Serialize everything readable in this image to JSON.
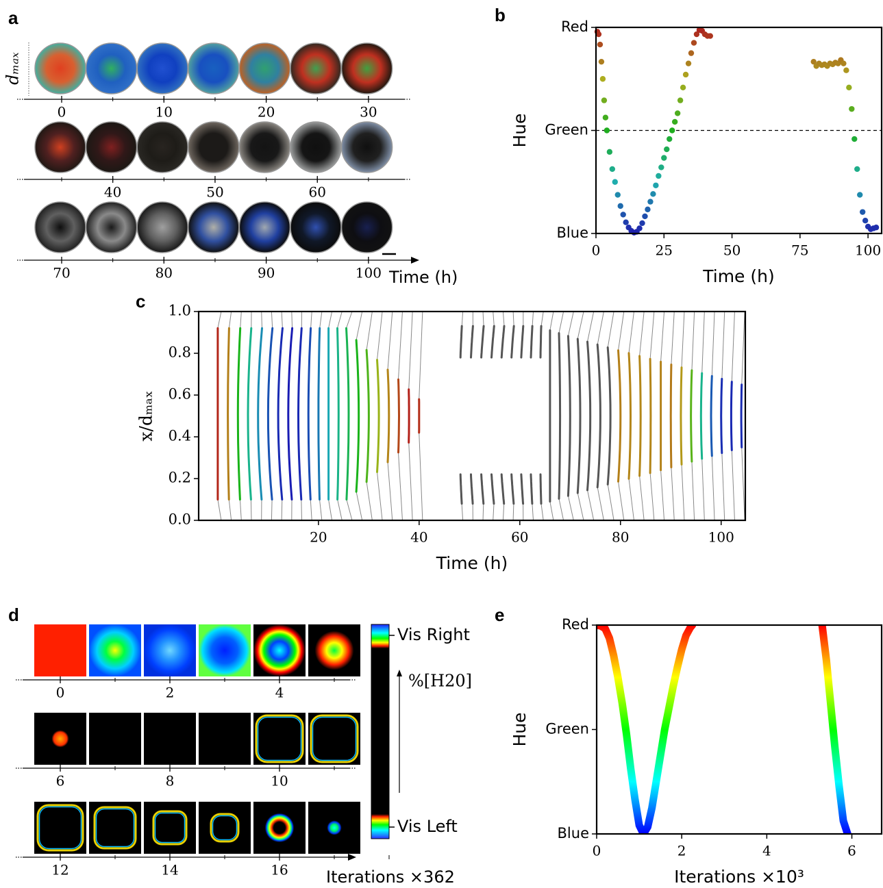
{
  "chart_data": [
    {
      "type": "photo-strip",
      "label": "a",
      "ylabel": "dₘₐₓ",
      "xlabel": "Time (h)",
      "xtick_rows": [
        [
          0,
          10,
          20,
          30
        ],
        [
          40,
          50,
          60
        ],
        [
          70,
          80,
          90,
          100
        ]
      ]
    },
    {
      "type": "scatter",
      "label": "b",
      "ylabel": "Hue",
      "xlabel": "Time (h)",
      "x": [
        0.5,
        1,
        1.5,
        2,
        2.5,
        3,
        3.5,
        4,
        5,
        6,
        7,
        8,
        9,
        10,
        11,
        12,
        13,
        14,
        15,
        16,
        17,
        18,
        19,
        20,
        21,
        22,
        23,
        24,
        25,
        26,
        27,
        28,
        29,
        30,
        31,
        32,
        33,
        34,
        35,
        36,
        37,
        38,
        39,
        40,
        41,
        42,
        80,
        81,
        82,
        83,
        84,
        85,
        86,
        87,
        88,
        89,
        90,
        91,
        92,
        93,
        94,
        95,
        96,
        97,
        98,
        99,
        100,
        101,
        102,
        103
      ],
      "values": [
        5,
        8,
        20,
        40,
        60,
        85,
        105,
        120,
        145,
        165,
        180,
        195,
        208,
        218,
        227,
        233,
        237,
        239,
        238,
        234,
        228,
        220,
        212,
        203,
        194,
        184,
        173,
        163,
        152,
        142,
        130,
        120,
        110,
        100,
        85,
        70,
        55,
        42,
        30,
        18,
        8,
        3,
        4,
        8,
        10,
        10,
        40,
        45,
        42,
        44,
        43,
        45,
        42,
        43,
        41,
        42,
        38,
        42,
        50,
        70,
        95,
        130,
        165,
        195,
        215,
        225,
        232,
        235,
        234,
        233
      ],
      "xlim": [
        0,
        105
      ],
      "ylim": [
        240,
        0
      ],
      "xticks": [
        0,
        25,
        50,
        75,
        100
      ],
      "yticks": [
        {
          "value": 0,
          "label": "Red"
        },
        {
          "value": 120,
          "label": "Green"
        },
        {
          "value": 240,
          "label": "Blue"
        }
      ],
      "hline": 120
    },
    {
      "type": "profiles",
      "label": "c",
      "ylabel": "x/dₘₐₓ",
      "xlabel": "Time (h)",
      "x": [
        0,
        2,
        4,
        6,
        8,
        10,
        12,
        14,
        16,
        18,
        20,
        22,
        24,
        26,
        28,
        30,
        32,
        34,
        36,
        38,
        40,
        48,
        50,
        52,
        54,
        56,
        58,
        60,
        62,
        64,
        66,
        68,
        70,
        72,
        74,
        76,
        78,
        80,
        82,
        84,
        86,
        88,
        90,
        92,
        94,
        96,
        98,
        100,
        102,
        104
      ],
      "values": [
        5,
        40,
        120,
        165,
        195,
        218,
        233,
        239,
        234,
        220,
        203,
        184,
        163,
        142,
        120,
        100,
        70,
        42,
        18,
        3,
        8,
        null,
        null,
        null,
        null,
        null,
        null,
        null,
        null,
        null,
        null,
        null,
        null,
        null,
        null,
        null,
        null,
        40,
        42,
        43,
        42,
        41,
        38,
        50,
        95,
        165,
        215,
        232,
        234,
        233
      ],
      "xlim": [
        -3.8,
        104.8
      ],
      "ylim": [
        0,
        1
      ],
      "xticks": [
        20,
        40,
        60,
        80,
        100
      ],
      "yticks": [
        {
          "value": 0,
          "label": "0.0"
        },
        0.2,
        0.4,
        0.6,
        0.8,
        {
          "value": 1,
          "label": "1.0"
        }
      ]
    },
    {
      "type": "simulation-strip",
      "label": "d",
      "xlabel": "Iterations ×362",
      "xtick_rows": [
        [
          0,
          2,
          4
        ],
        [
          6,
          8,
          10
        ],
        [
          12,
          14,
          16
        ]
      ],
      "colorbar_labels": [
        "Vis Right",
        "Vis Left"
      ],
      "colorbar_axis_label": "%[H20]"
    },
    {
      "type": "line",
      "label": "e",
      "ylabel": "Hue",
      "xlabel": "Iterations ×10³",
      "x": [
        0,
        0.1,
        0.2,
        0.3,
        0.4,
        0.5,
        0.6,
        0.7,
        0.8,
        0.9,
        1.0,
        1.1,
        1.2,
        1.3,
        1.4,
        1.5,
        1.6,
        1.7,
        1.8,
        1.9,
        2.0,
        2.1,
        2.2,
        2.25,
        null,
        5.3,
        5.4,
        5.5,
        5.6,
        5.7,
        5.8,
        5.9
      ],
      "values": [
        0,
        1,
        4,
        15,
        35,
        60,
        90,
        125,
        165,
        200,
        230,
        240,
        232,
        210,
        180,
        150,
        120,
        95,
        70,
        48,
        28,
        12,
        3,
        0,
        null,
        0,
        40,
        90,
        140,
        185,
        225,
        240
      ],
      "xlim": [
        0,
        6.7
      ],
      "ylim": [
        240,
        0
      ],
      "xticks": [
        0,
        2,
        4,
        6
      ],
      "yticks": [
        {
          "value": 0,
          "label": "Red"
        },
        {
          "value": 120,
          "label": "Green"
        },
        {
          "value": 240,
          "label": "Blue"
        }
      ]
    }
  ]
}
